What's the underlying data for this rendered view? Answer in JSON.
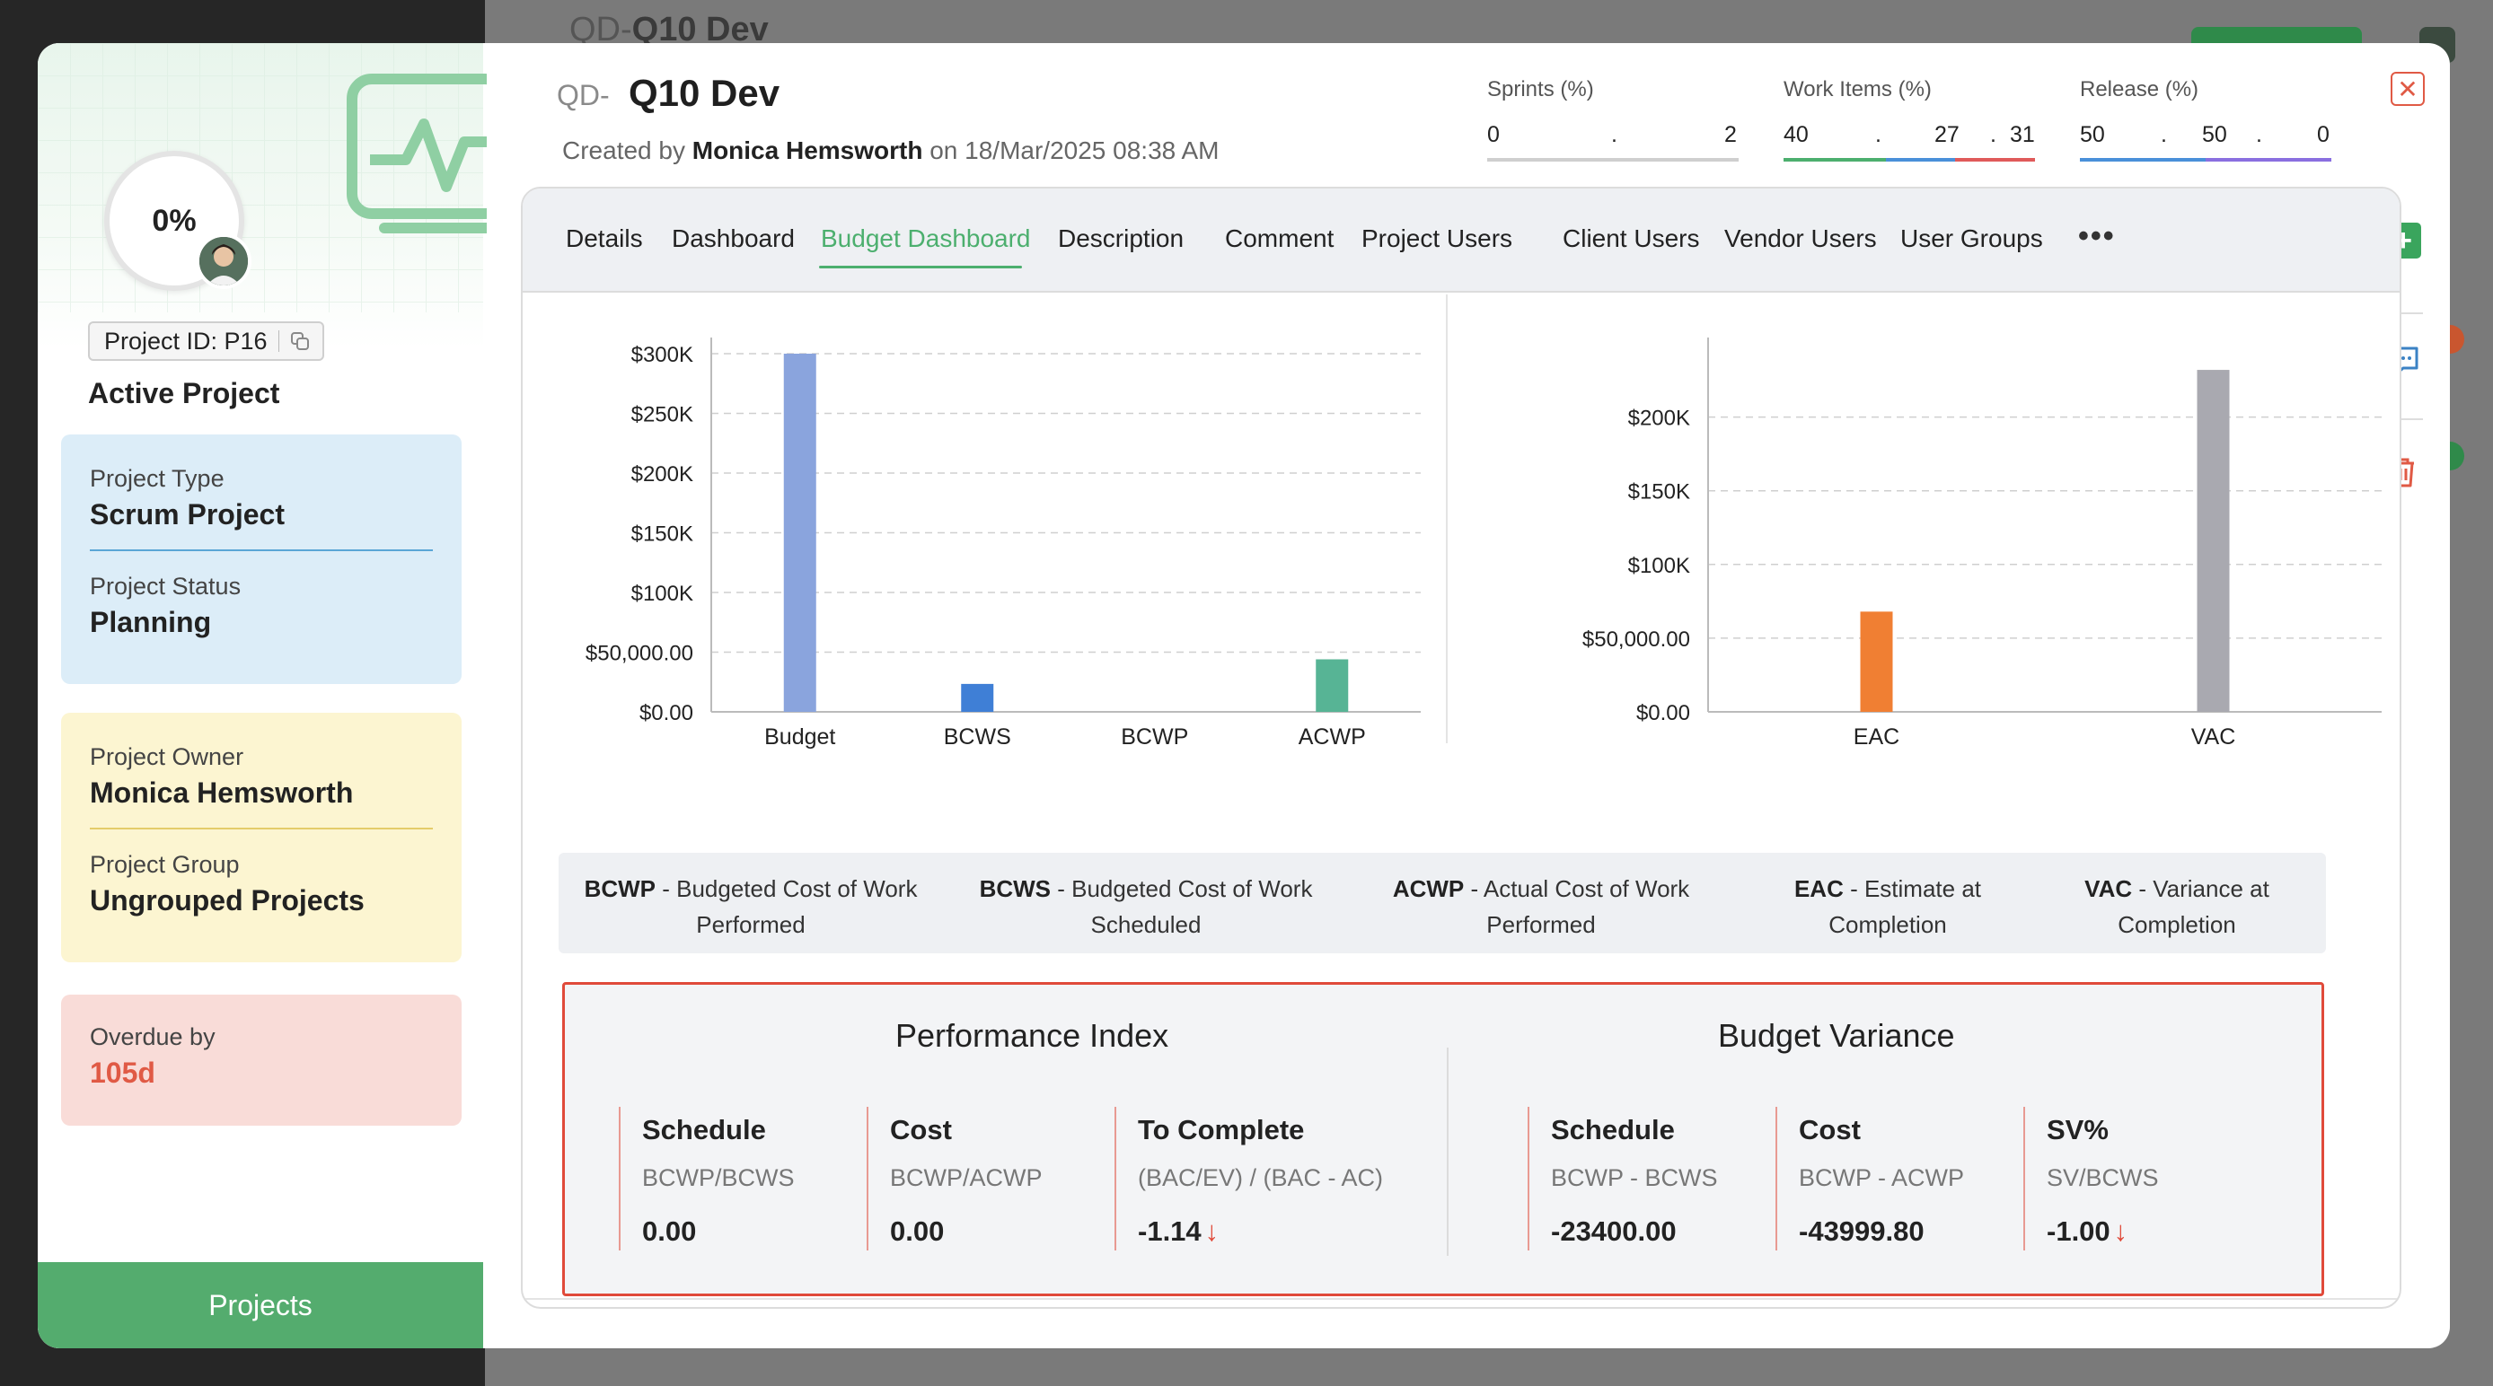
{
  "background": {
    "title_prefix": "QD-",
    "title": "Q10 Dev"
  },
  "sidebar": {
    "progress": "0%",
    "project_id": "Project ID: P16",
    "status_heading": "Active Project",
    "project_type_label": "Project Type",
    "project_type_value": "Scrum Project",
    "project_status_label": "Project Status",
    "project_status_value": "Planning",
    "project_owner_label": "Project Owner",
    "project_owner_value": "Monica Hemsworth",
    "project_group_label": "Project Group",
    "project_group_value": "Ungrouped Projects",
    "overdue_label": "Overdue by",
    "overdue_value": "105d",
    "projects_button": "Projects"
  },
  "header": {
    "prefix": "QD-",
    "title": "Q10 Dev",
    "created_by_label": "Created by",
    "created_by_name": "Monica Hemsworth",
    "created_on": "on 18/Mar/2025 08:38 AM"
  },
  "metrics": [
    {
      "label": "Sprints (%)",
      "v1": "0",
      "dot1": ".",
      "v2": "2",
      "bar": [
        "#cfcfcf"
      ],
      "bar_frac": [
        1
      ]
    },
    {
      "label": "Work Items (%)",
      "v1": "40",
      "dot1": ".",
      "v2": "27",
      "dot2": ".",
      "v3": "31",
      "bar": [
        "#4caf6e",
        "#4a90d9",
        "#e05a5a"
      ],
      "bar_frac": [
        0.4,
        0.27,
        0.31
      ]
    },
    {
      "label": "Release (%)",
      "v1": "50",
      "dot1": ".",
      "v2": "50",
      "dot2": ".",
      "v3": "0",
      "bar": [
        "#4a90d9",
        "#8a6fe0"
      ],
      "bar_frac": [
        0.5,
        0.5
      ]
    }
  ],
  "tabs": [
    "Details",
    "Dashboard",
    "Budget Dashboard",
    "Description",
    "Comment",
    "Project Users",
    "Client Users",
    "Vendor Users",
    "User Groups"
  ],
  "active_tab": "Budget Dashboard",
  "chart_data": [
    {
      "type": "bar",
      "categories": [
        "Budget",
        "BCWS",
        "BCWP",
        "ACWP"
      ],
      "values": [
        300000,
        23400,
        0,
        43999.8
      ],
      "colors": [
        "#8aa4dd",
        "#3f7fd6",
        "#8aa4dd",
        "#57b495"
      ],
      "yticks": [
        "$0.00",
        "$50,000.00",
        "$100K",
        "$150K",
        "$200K",
        "$250K",
        "$300K"
      ],
      "ylim": [
        0,
        300000
      ],
      "grid": true
    },
    {
      "type": "bar",
      "categories": [
        "EAC",
        "VAC"
      ],
      "values": [
        68000,
        232000
      ],
      "colors": [
        "#f07f33",
        "#a9a9b0"
      ],
      "yticks": [
        "$0.00",
        "$50,000.00",
        "$100K",
        "$150K",
        "$200K"
      ],
      "ylim": [
        0,
        243000
      ],
      "grid": true
    }
  ],
  "legend": [
    {
      "abbr": "BCWP",
      "line1": "Budgeted Cost of Work",
      "line2": "Performed"
    },
    {
      "abbr": "BCWS",
      "line1": "Budgeted Cost of Work",
      "line2": "Scheduled"
    },
    {
      "abbr": "ACWP",
      "line1": "Actual Cost of Work",
      "line2": "Performed"
    },
    {
      "abbr": "EAC",
      "line1": "Estimate at",
      "line2": "Completion"
    },
    {
      "abbr": "VAC",
      "line1": "Variance at",
      "line2": "Completion"
    }
  ],
  "performance_index": {
    "title": "Performance Index",
    "items": [
      {
        "name": "Schedule",
        "formula": "BCWP/BCWS",
        "value": "0.00",
        "arrow": ""
      },
      {
        "name": "Cost",
        "formula": "BCWP/ACWP",
        "value": "0.00",
        "arrow": ""
      },
      {
        "name": "To Complete",
        "formula": "(BAC/EV) / (BAC - AC)",
        "value": "-1.14",
        "arrow": "↓"
      }
    ]
  },
  "budget_variance": {
    "title": "Budget Variance",
    "items": [
      {
        "name": "Schedule",
        "formula": "BCWP - BCWS",
        "value": "-23400.00",
        "arrow": ""
      },
      {
        "name": "Cost",
        "formula": "BCWP - ACWP",
        "value": "-43999.80",
        "arrow": ""
      },
      {
        "name": "SV%",
        "formula": "SV/BCWS",
        "value": "-1.00",
        "arrow": "↓"
      }
    ]
  },
  "icons": {
    "close": "close-icon",
    "add": "plus-icon",
    "comment": "comment-icon",
    "delete": "trash-icon",
    "copy": "copy-icon",
    "more": "more-dots-icon"
  },
  "accent_color": "#4caf6e",
  "alert_color": "#e04a3a"
}
